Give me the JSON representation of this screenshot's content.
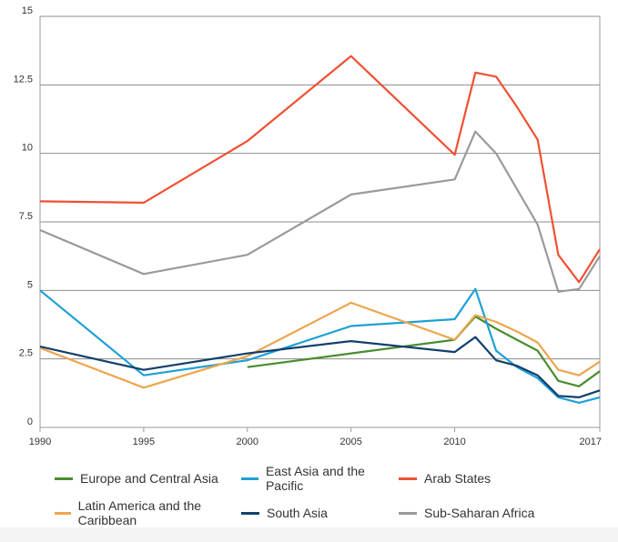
{
  "chart_data": {
    "type": "line",
    "title": "",
    "xlabel": "",
    "ylabel": "",
    "xlim": [
      1990,
      2017
    ],
    "ylim": [
      0,
      15
    ],
    "x_ticks": [
      "1990",
      "1995",
      "2000",
      "2005",
      "2010",
      "2017"
    ],
    "y_ticks": [
      "0",
      "2.5",
      "5",
      "7.5",
      "10",
      "12.5",
      "15"
    ],
    "grid": "horizontal",
    "legend_position": "bottom",
    "x": [
      1990,
      1995,
      2000,
      2005,
      2010,
      2011,
      2012,
      2013,
      2014,
      2015,
      2016,
      2017
    ],
    "series": [
      {
        "name": "Europe and Central Asia",
        "color": "#4a8c2f",
        "values": [
          null,
          null,
          2.2,
          2.7,
          3.2,
          4.05,
          3.6,
          3.2,
          2.8,
          1.7,
          1.5,
          2.05
        ]
      },
      {
        "name": "East Asia and the Pacific",
        "color": "#1ea0d6",
        "values": [
          5.0,
          1.9,
          2.45,
          3.7,
          3.95,
          5.05,
          2.8,
          2.2,
          1.8,
          1.1,
          0.9,
          1.1
        ]
      },
      {
        "name": "Arab States",
        "color": "#f05033",
        "values": [
          8.25,
          8.2,
          10.45,
          13.55,
          9.95,
          12.95,
          12.8,
          11.7,
          10.5,
          6.3,
          5.3,
          6.5
        ]
      },
      {
        "name": "Latin America and the Caribbean",
        "color": "#eda54d",
        "values": [
          2.9,
          1.45,
          2.6,
          4.55,
          3.2,
          4.1,
          3.85,
          3.5,
          3.1,
          2.1,
          1.9,
          2.4
        ]
      },
      {
        "name": "South Asia",
        "color": "#123f6b",
        "values": [
          2.95,
          2.1,
          2.7,
          3.15,
          2.75,
          3.3,
          2.45,
          2.25,
          1.9,
          1.15,
          1.1,
          1.35
        ]
      },
      {
        "name": "Sub-Saharan Africa",
        "color": "#9a9a9a",
        "values": [
          7.2,
          5.6,
          6.3,
          8.5,
          9.05,
          10.8,
          10.0,
          8.7,
          7.4,
          4.95,
          5.05,
          6.25
        ]
      }
    ]
  }
}
